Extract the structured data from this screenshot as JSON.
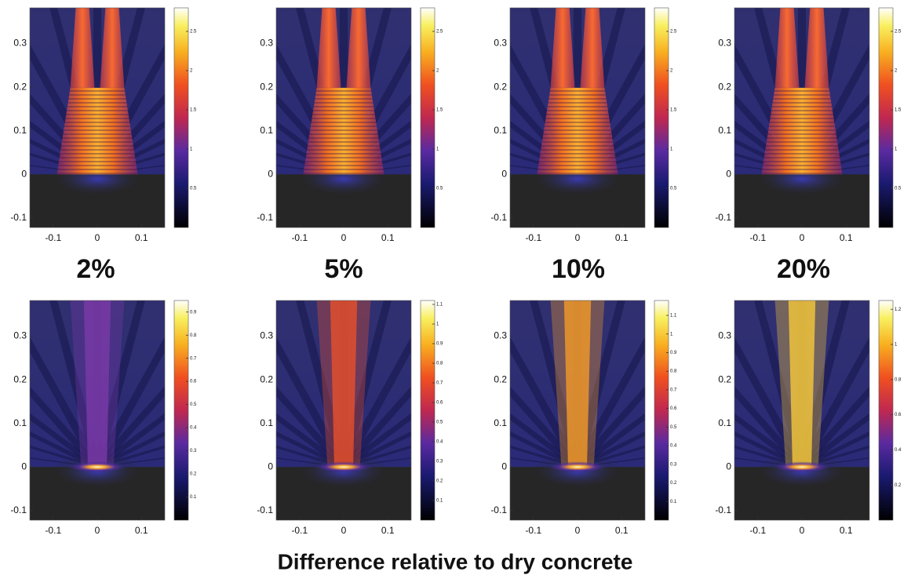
{
  "column_labels": [
    "2%",
    "5%",
    "10%",
    "20%"
  ],
  "caption": "Difference relative to dry concrete",
  "chart_data": [
    {
      "type": "heatmap",
      "xlim": [
        -0.153,
        0.153
      ],
      "ylim": [
        -0.122,
        0.382
      ],
      "xticks": [
        -0.1,
        0,
        0.1
      ],
      "yticks": [
        -0.1,
        0,
        0.1,
        0.2,
        0.3
      ],
      "clim": [
        0,
        2.8
      ],
      "cticks": [
        0.5,
        1,
        1.5,
        2,
        2.5
      ]
    },
    {
      "type": "heatmap",
      "xlim": [
        -0.153,
        0.153
      ],
      "ylim": [
        -0.122,
        0.382
      ],
      "xticks": [
        -0.1,
        0,
        0.1
      ],
      "yticks": [
        -0.1,
        0,
        0.1,
        0.2,
        0.3
      ],
      "clim": [
        0,
        2.8
      ],
      "cticks": [
        0.5,
        1,
        1.5,
        2,
        2.5
      ]
    },
    {
      "type": "heatmap",
      "xlim": [
        -0.153,
        0.153
      ],
      "ylim": [
        -0.122,
        0.382
      ],
      "xticks": [
        -0.1,
        0,
        0.1
      ],
      "yticks": [
        -0.1,
        0,
        0.1,
        0.2,
        0.3
      ],
      "clim": [
        0,
        2.8
      ],
      "cticks": [
        0.5,
        1,
        1.5,
        2,
        2.5
      ]
    },
    {
      "type": "heatmap",
      "xlim": [
        -0.153,
        0.153
      ],
      "ylim": [
        -0.122,
        0.382
      ],
      "xticks": [
        -0.1,
        0,
        0.1
      ],
      "yticks": [
        -0.1,
        0,
        0.1,
        0.2,
        0.3
      ],
      "clim": [
        0,
        2.8
      ],
      "cticks": [
        0.5,
        1,
        1.5,
        2,
        2.5
      ]
    },
    {
      "type": "heatmap",
      "xlim": [
        -0.153,
        0.153
      ],
      "ylim": [
        -0.122,
        0.382
      ],
      "xticks": [
        -0.1,
        0,
        0.1
      ],
      "yticks": [
        -0.1,
        0,
        0.1,
        0.2,
        0.3
      ],
      "clim": [
        0,
        0.95
      ],
      "cticks": [
        0.1,
        0.2,
        0.3,
        0.4,
        0.5,
        0.6,
        0.7,
        0.8,
        0.9
      ]
    },
    {
      "type": "heatmap",
      "xlim": [
        -0.153,
        0.153
      ],
      "ylim": [
        -0.122,
        0.382
      ],
      "xticks": [
        -0.1,
        0,
        0.1
      ],
      "yticks": [
        -0.1,
        0,
        0.1,
        0.2,
        0.3
      ],
      "clim": [
        0,
        1.12
      ],
      "cticks": [
        0.1,
        0.2,
        0.3,
        0.4,
        0.5,
        0.6,
        0.7,
        0.8,
        0.9,
        1,
        1.1
      ]
    },
    {
      "type": "heatmap",
      "xlim": [
        -0.153,
        0.153
      ],
      "ylim": [
        -0.122,
        0.382
      ],
      "xticks": [
        -0.1,
        0,
        0.1
      ],
      "yticks": [
        -0.1,
        0,
        0.1,
        0.2,
        0.3
      ],
      "clim": [
        0,
        1.18
      ],
      "cticks": [
        0.1,
        0.2,
        0.3,
        0.4,
        0.5,
        0.6,
        0.7,
        0.8,
        0.9,
        1,
        1.1
      ]
    },
    {
      "type": "heatmap",
      "xlim": [
        -0.153,
        0.153
      ],
      "ylim": [
        -0.122,
        0.382
      ],
      "xticks": [
        -0.1,
        0,
        0.1
      ],
      "yticks": [
        -0.1,
        0,
        0.1,
        0.2,
        0.3
      ],
      "clim": [
        0,
        1.25
      ],
      "cticks": [
        0.2,
        0.4,
        0.6,
        0.8,
        1,
        1.2
      ]
    }
  ]
}
